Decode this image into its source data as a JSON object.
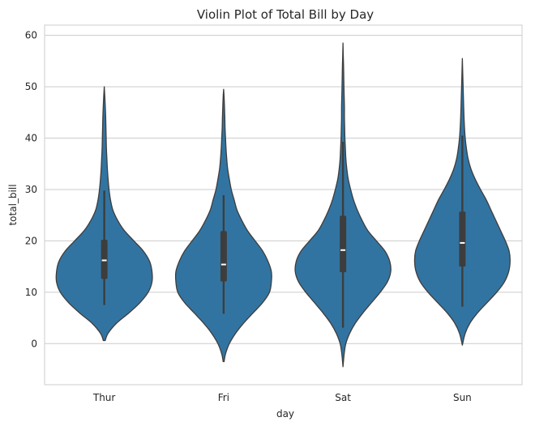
{
  "chart_data": {
    "type": "violin",
    "title": "Violin Plot of Total Bill by Day",
    "xlabel": "day",
    "ylabel": "total_bill",
    "ylim": [
      -8,
      62
    ],
    "yticks": [
      0,
      10,
      20,
      30,
      40,
      50,
      60
    ],
    "grid": true,
    "colors": {
      "violin_fill": "#3274a1",
      "edge": "#3d3d3d",
      "median": "#ffffff"
    },
    "categories": [
      "Thur",
      "Fri",
      "Sat",
      "Sun"
    ],
    "violins": [
      {
        "category": "Thur",
        "min": 7.5,
        "q1": 12.6,
        "median": 16.2,
        "q3": 20.2,
        "max": 29.8,
        "kde_y": [
          0.6,
          2,
          4,
          6,
          8,
          10,
          12,
          14,
          16,
          18,
          20,
          22,
          24,
          26,
          28,
          30,
          32,
          34,
          36,
          38,
          40,
          42,
          44,
          46,
          48,
          50
        ],
        "kde_width": [
          0.02,
          0.08,
          0.26,
          0.52,
          0.75,
          0.92,
          1.0,
          1.0,
          0.95,
          0.82,
          0.62,
          0.42,
          0.28,
          0.18,
          0.13,
          0.1,
          0.08,
          0.065,
          0.055,
          0.045,
          0.04,
          0.035,
          0.03,
          0.022,
          0.012,
          0.0
        ]
      },
      {
        "category": "Fri",
        "min": 5.8,
        "q1": 12.1,
        "median": 15.4,
        "q3": 21.9,
        "max": 28.9,
        "kde_y": [
          -3.5,
          -2,
          0,
          2,
          4,
          6,
          8,
          10,
          12,
          14,
          16,
          18,
          20,
          22,
          24,
          26,
          28,
          30,
          32,
          34,
          36,
          38,
          40,
          42,
          44,
          46,
          48,
          49.5
        ],
        "kde_width": [
          0.01,
          0.04,
          0.12,
          0.25,
          0.42,
          0.62,
          0.82,
          0.96,
          1.0,
          1.0,
          0.93,
          0.82,
          0.66,
          0.5,
          0.38,
          0.28,
          0.22,
          0.16,
          0.12,
          0.085,
          0.065,
          0.05,
          0.04,
          0.03,
          0.025,
          0.018,
          0.01,
          0.0
        ]
      },
      {
        "category": "Sat",
        "min": 3.1,
        "q1": 13.9,
        "median": 18.2,
        "q3": 24.9,
        "max": 39.3,
        "kde_y": [
          -4.5,
          -2,
          0,
          2,
          4,
          6,
          8,
          10,
          12,
          14,
          16,
          18,
          20,
          22,
          24,
          26,
          28,
          30,
          32,
          34,
          36,
          38,
          40,
          42,
          44,
          46,
          48,
          50,
          52,
          54,
          56,
          58.5
        ],
        "kde_width": [
          0.0,
          0.025,
          0.06,
          0.14,
          0.26,
          0.42,
          0.6,
          0.78,
          0.93,
          1.0,
          0.98,
          0.88,
          0.7,
          0.52,
          0.4,
          0.3,
          0.22,
          0.16,
          0.11,
          0.08,
          0.06,
          0.05,
          0.04,
          0.035,
          0.03,
          0.03,
          0.025,
          0.02,
          0.016,
          0.012,
          0.006,
          0.0
        ]
      },
      {
        "category": "Sun",
        "min": 7.2,
        "q1": 15.0,
        "median": 19.6,
        "q3": 25.7,
        "max": 40.5,
        "kde_y": [
          -0.3,
          2,
          4,
          6,
          8,
          10,
          12,
          14,
          16,
          18,
          20,
          22,
          24,
          26,
          28,
          30,
          32,
          34,
          36,
          38,
          40,
          42,
          44,
          46,
          48,
          50,
          52,
          55.5
        ],
        "kde_width": [
          0.0,
          0.06,
          0.16,
          0.32,
          0.52,
          0.72,
          0.88,
          0.97,
          1.0,
          0.98,
          0.9,
          0.8,
          0.7,
          0.6,
          0.5,
          0.38,
          0.27,
          0.18,
          0.12,
          0.085,
          0.06,
          0.045,
          0.035,
          0.028,
          0.022,
          0.016,
          0.01,
          0.0
        ]
      }
    ]
  }
}
